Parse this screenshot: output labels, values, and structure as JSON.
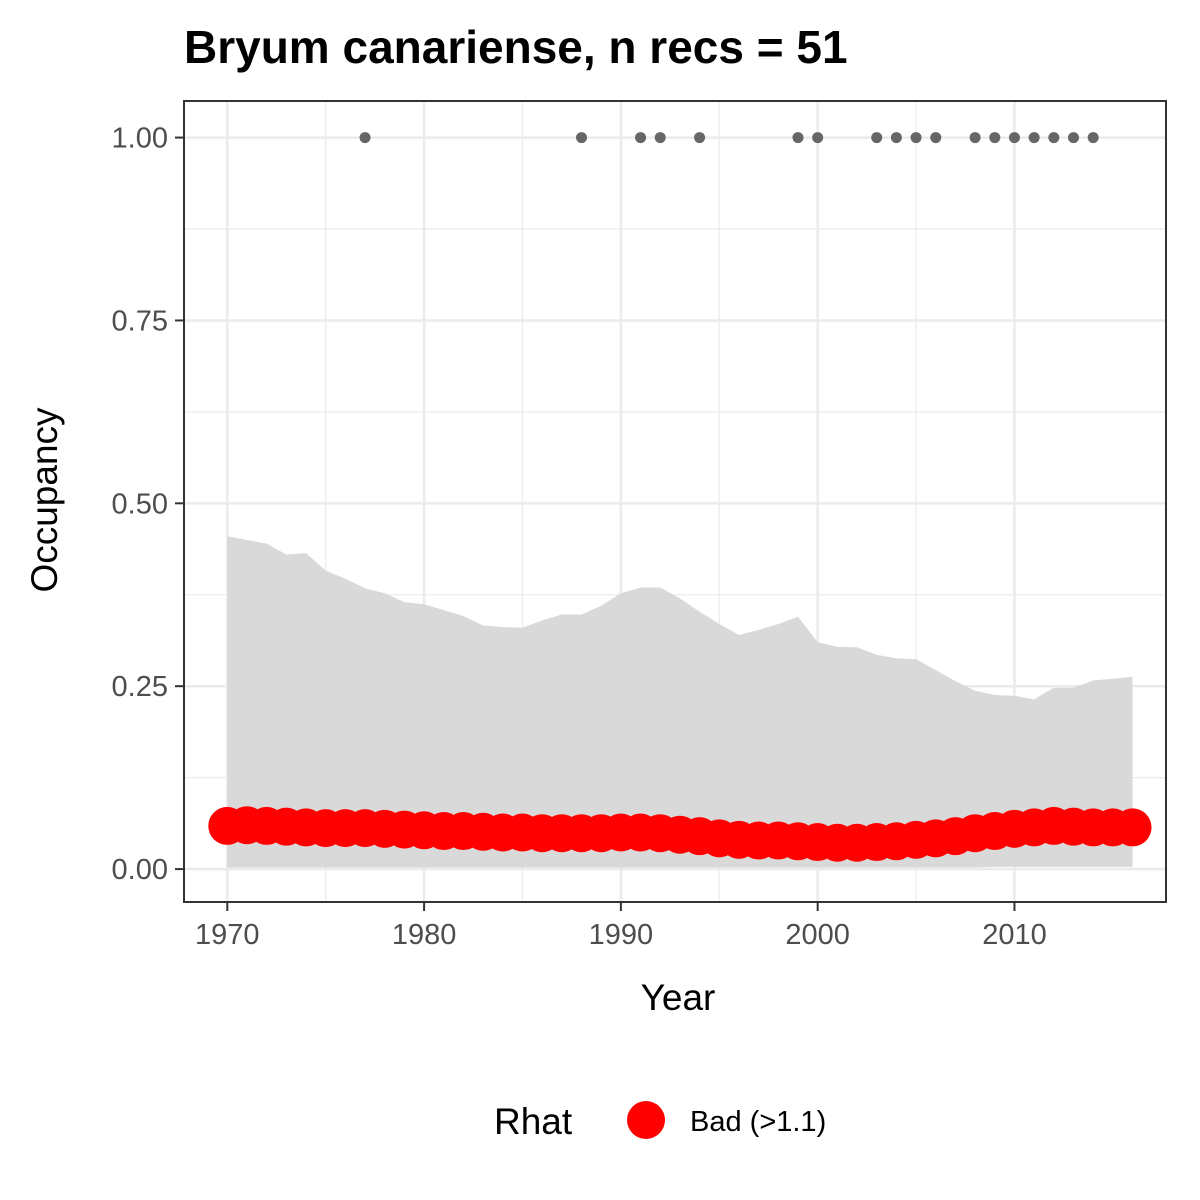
{
  "chart_data": {
    "type": "line",
    "title": "Bryum canariense, n recs = 51",
    "xlabel": "Year",
    "ylabel": "Occupancy",
    "xlim": [
      1967.8,
      2017.7
    ],
    "ylim": [
      -0.045,
      1.05
    ],
    "x_ticks": [
      1970,
      1980,
      1990,
      2000,
      2010
    ],
    "x_tick_labels": [
      "1970",
      "1980",
      "1990",
      "2000",
      "2010"
    ],
    "y_ticks": [
      0,
      0.25,
      0.5,
      0.75,
      1.0
    ],
    "y_tick_labels": [
      "0.00",
      "0.25",
      "0.50",
      "0.75",
      "1.00"
    ],
    "grid": true,
    "x": [
      1970,
      1971,
      1972,
      1973,
      1974,
      1975,
      1976,
      1977,
      1978,
      1979,
      1980,
      1981,
      1982,
      1983,
      1984,
      1985,
      1986,
      1987,
      1988,
      1989,
      1990,
      1991,
      1992,
      1993,
      1994,
      1995,
      1996,
      1997,
      1998,
      1999,
      2000,
      2001,
      2002,
      2003,
      2004,
      2005,
      2006,
      2007,
      2008,
      2009,
      2010,
      2011,
      2012,
      2013,
      2014,
      2015,
      2016
    ],
    "series": [
      {
        "name": "Bad (>1.1)",
        "values": [
          0.059,
          0.06,
          0.059,
          0.058,
          0.057,
          0.056,
          0.056,
          0.056,
          0.055,
          0.054,
          0.053,
          0.052,
          0.052,
          0.051,
          0.05,
          0.05,
          0.049,
          0.049,
          0.049,
          0.049,
          0.05,
          0.05,
          0.049,
          0.047,
          0.045,
          0.042,
          0.04,
          0.039,
          0.039,
          0.038,
          0.037,
          0.036,
          0.036,
          0.037,
          0.038,
          0.04,
          0.042,
          0.045,
          0.049,
          0.052,
          0.055,
          0.057,
          0.059,
          0.058,
          0.057,
          0.057,
          0.057
        ]
      }
    ],
    "ribbon": {
      "upper": [
        0.455,
        0.45,
        0.445,
        0.43,
        0.432,
        0.408,
        0.397,
        0.384,
        0.377,
        0.365,
        0.362,
        0.354,
        0.346,
        0.333,
        0.331,
        0.33,
        0.34,
        0.348,
        0.348,
        0.36,
        0.377,
        0.385,
        0.385,
        0.37,
        0.352,
        0.335,
        0.32,
        0.327,
        0.335,
        0.345,
        0.31,
        0.304,
        0.303,
        0.293,
        0.288,
        0.287,
        0.272,
        0.257,
        0.244,
        0.238,
        0.237,
        0.232,
        0.248,
        0.248,
        0.258,
        0.26,
        0.263
      ],
      "lower": [
        0.002,
        0.002,
        0.002,
        0.002,
        0.002,
        0.002,
        0.002,
        0.002,
        0.002,
        0.002,
        0.002,
        0.002,
        0.002,
        0.002,
        0.002,
        0.002,
        0.002,
        0.002,
        0.002,
        0.002,
        0.002,
        0.002,
        0.002,
        0.002,
        0.002,
        0.002,
        0.002,
        0.002,
        0.002,
        0.002,
        0.002,
        0.002,
        0.002,
        0.002,
        0.002,
        0.002,
        0.002,
        0.002,
        0.002,
        0.003,
        0.003,
        0.003,
        0.003,
        0.003,
        0.003,
        0.003,
        0.003
      ]
    },
    "records": {
      "y": 1.0,
      "x": [
        1977,
        1988,
        1991,
        1992,
        1994,
        1999,
        2000,
        2003,
        2004,
        2005,
        2006,
        2008,
        2009,
        2010,
        2011,
        2012,
        2013,
        2014
      ]
    },
    "legend": {
      "title": "Rhat",
      "placement": "bottom",
      "entries": [
        {
          "label": "Bad (>1.1)",
          "color": "#ff0000"
        }
      ]
    },
    "colors": {
      "occupancy_points": "#ff0000",
      "ribbon": "#d6d6d6",
      "record_points": "#666666",
      "panel_border": "#333333",
      "grid": "#ebebeb"
    }
  }
}
